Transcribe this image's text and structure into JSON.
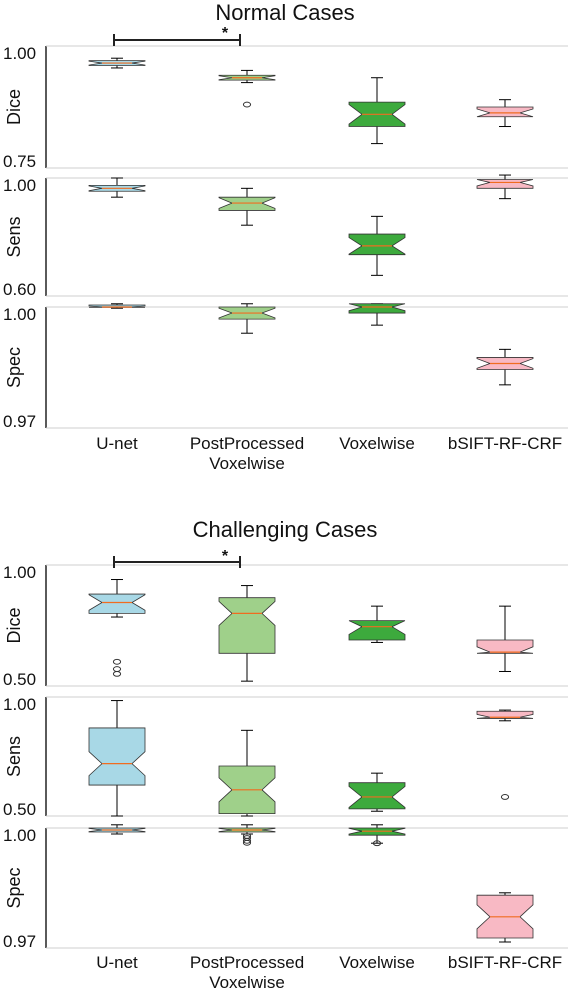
{
  "chart_data": [
    {
      "type": "box",
      "title": "Normal Cases",
      "categories": [
        "U-net",
        "PostProcessed\nVoxelwise",
        "Voxelwise",
        "bSIFT-RF-CRF"
      ],
      "significance": {
        "from": 0,
        "to": 1,
        "label": "*"
      },
      "panels": [
        {
          "ylabel": "Dice",
          "ylim": [
            0.75,
            1.0
          ],
          "tick_labels": [
            "0.75",
            "1.00"
          ],
          "boxes": [
            {
              "whislo": 0.955,
              "q1": 0.96,
              "med": 0.965,
              "q3": 0.97,
              "whishi": 0.975,
              "fliers": []
            },
            {
              "whislo": 0.925,
              "q1": 0.93,
              "med": 0.935,
              "q3": 0.94,
              "whishi": 0.95,
              "fliers": [
                0.88
              ]
            },
            {
              "whislo": 0.8,
              "q1": 0.835,
              "med": 0.86,
              "q3": 0.885,
              "whishi": 0.935,
              "fliers": []
            },
            {
              "whislo": 0.835,
              "q1": 0.855,
              "med": 0.863,
              "q3": 0.875,
              "whishi": 0.89,
              "fliers": []
            }
          ]
        },
        {
          "ylabel": "Sens",
          "ylim": [
            0.6,
            1.0
          ],
          "tick_labels": [
            "0.60",
            "1.00"
          ],
          "boxes": [
            {
              "whislo": 0.935,
              "q1": 0.955,
              "med": 0.965,
              "q3": 0.975,
              "whishi": 1.0,
              "fliers": []
            },
            {
              "whislo": 0.84,
              "q1": 0.89,
              "med": 0.915,
              "q3": 0.935,
              "whishi": 0.965,
              "fliers": []
            },
            {
              "whislo": 0.67,
              "q1": 0.74,
              "med": 0.77,
              "q3": 0.81,
              "whishi": 0.87,
              "fliers": []
            },
            {
              "whislo": 0.93,
              "q1": 0.965,
              "med": 0.985,
              "q3": 0.995,
              "whishi": 1.01,
              "fliers": []
            }
          ]
        },
        {
          "ylabel": "Spec",
          "ylim": [
            0.97,
            1.0
          ],
          "tick_labels": [
            "0.97",
            "1.00"
          ],
          "boxes": [
            {
              "whislo": 0.9997,
              "q1": 0.9999,
              "med": 1.0,
              "q3": 1.0005,
              "whishi": 1.0008,
              "fliers": []
            },
            {
              "whislo": 0.9935,
              "q1": 0.997,
              "med": 0.9985,
              "q3": 1.0,
              "whishi": 1.0008,
              "fliers": []
            },
            {
              "whislo": 0.9955,
              "q1": 0.9985,
              "med": 1.0,
              "q3": 1.0008,
              "whishi": 1.0008,
              "fliers": []
            },
            {
              "whislo": 0.9807,
              "q1": 0.9845,
              "med": 0.986,
              "q3": 0.9875,
              "whishi": 0.9895,
              "fliers": []
            }
          ]
        }
      ]
    },
    {
      "type": "box",
      "title": "Challenging Cases",
      "categories": [
        "U-net",
        "PostProcessed\nVoxelwise",
        "Voxelwise",
        "bSIFT-RF-CRF"
      ],
      "significance": {
        "from": 0,
        "to": 1,
        "label": "*"
      },
      "panels": [
        {
          "ylabel": "Dice",
          "ylim": [
            0.5,
            1.0
          ],
          "tick_labels": [
            "0.50",
            "1.00"
          ],
          "boxes": [
            {
              "whislo": 0.785,
              "q1": 0.8,
              "med": 0.845,
              "q3": 0.88,
              "whishi": 0.94,
              "fliers": [
                0.6,
                0.57,
                0.55
              ]
            },
            {
              "whislo": 0.52,
              "q1": 0.635,
              "med": 0.8,
              "q3": 0.865,
              "whishi": 0.915,
              "fliers": []
            },
            {
              "whislo": 0.68,
              "q1": 0.69,
              "med": 0.745,
              "q3": 0.77,
              "whishi": 0.83,
              "fliers": []
            },
            {
              "whislo": 0.56,
              "q1": 0.635,
              "med": 0.64,
              "q3": 0.69,
              "whishi": 0.83,
              "fliers": []
            }
          ]
        },
        {
          "ylabel": "Sens",
          "ylim": [
            0.5,
            1.0
          ],
          "tick_labels": [
            "0.50",
            "1.00"
          ],
          "boxes": [
            {
              "whislo": 0.5,
              "q1": 0.63,
              "med": 0.72,
              "q3": 0.87,
              "whishi": 0.985,
              "fliers": []
            },
            {
              "whislo": 0.5,
              "q1": 0.51,
              "med": 0.61,
              "q3": 0.71,
              "whishi": 0.86,
              "fliers": []
            },
            {
              "whislo": 0.52,
              "q1": 0.53,
              "med": 0.58,
              "q3": 0.64,
              "whishi": 0.68,
              "fliers": []
            },
            {
              "whislo": 0.9,
              "q1": 0.91,
              "med": 0.915,
              "q3": 0.94,
              "whishi": 0.945,
              "fliers": [
                0.58
              ]
            }
          ]
        },
        {
          "ylabel": "Spec",
          "ylim": [
            0.97,
            1.0
          ],
          "tick_labels": [
            "0.97",
            "1.00"
          ],
          "boxes": [
            {
              "whislo": 0.9985,
              "q1": 0.999,
              "med": 0.9995,
              "q3": 1.0,
              "whishi": 1.0008,
              "fliers": []
            },
            {
              "whislo": 0.9985,
              "q1": 0.999,
              "med": 0.9995,
              "q3": 1.0,
              "whishi": 1.0008,
              "fliers": [
                0.998,
                0.9975,
                0.9968,
                0.9963
              ]
            },
            {
              "whislo": 0.9962,
              "q1": 0.9982,
              "med": 0.9992,
              "q3": 1.0,
              "whishi": 1.0008,
              "fliers": [
                0.9962
              ]
            },
            {
              "whislo": 0.9715,
              "q1": 0.9725,
              "med": 0.9778,
              "q3": 0.9832,
              "whishi": 0.9838,
              "fliers": []
            }
          ]
        }
      ]
    }
  ],
  "colors": {
    "box_fills": [
      "#a8d8e6",
      "#9fd08a",
      "#3daa3d",
      "#f8b9c4"
    ],
    "median": "#f06c20",
    "frame": "#000000"
  }
}
